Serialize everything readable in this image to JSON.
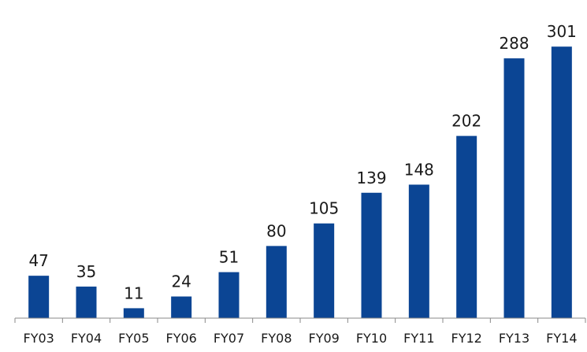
{
  "chart_data": {
    "type": "bar",
    "categories": [
      "FY03",
      "FY04",
      "FY05",
      "FY06",
      "FY07",
      "FY08",
      "FY09",
      "FY10",
      "FY11",
      "FY12",
      "FY13",
      "FY14"
    ],
    "values": [
      47,
      35,
      11,
      24,
      51,
      80,
      105,
      139,
      148,
      202,
      288,
      301
    ],
    "title": "",
    "xlabel": "",
    "ylabel": "",
    "ylim": [
      0,
      320
    ],
    "grid": false,
    "legend": "none",
    "data_labels": true,
    "bar_color": "#0b4594",
    "axis_color": "#888888",
    "text_color": "#1a1a1a"
  }
}
